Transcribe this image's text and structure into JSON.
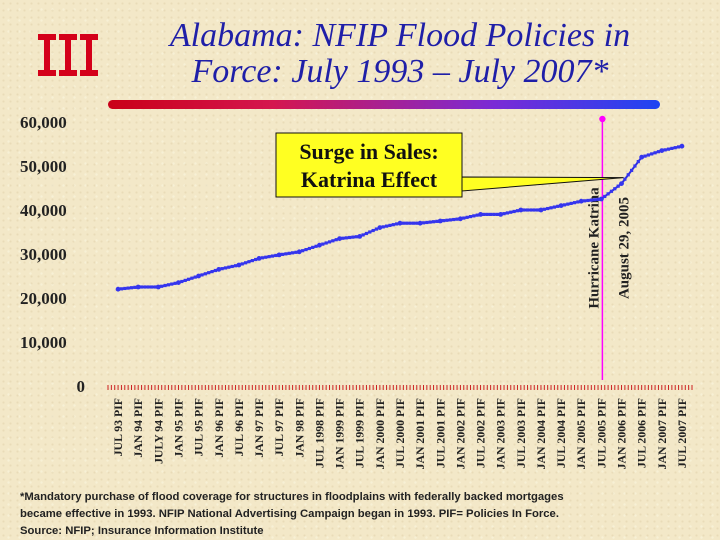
{
  "header": {
    "title_line1": "Alabama: NFIP Flood Policies in",
    "title_line2": "Force: July 1993 – July 2007*"
  },
  "colors": {
    "title": "#1f1fa8",
    "series": "#2a2ae0",
    "marker": "#3535ee",
    "event_line": "#ff00ff",
    "callout_fill": "#ffff22",
    "logo": "#d4001a"
  },
  "logo": {
    "icon": "iii-logo-icon"
  },
  "chart_data": {
    "type": "line",
    "title": "Alabama: NFIP Flood Policies in Force: July 1993 – July 2007*",
    "xlabel": "",
    "ylabel": "",
    "ylim": [
      0,
      60000
    ],
    "y_ticks": [
      0,
      10000,
      20000,
      30000,
      40000,
      50000,
      60000
    ],
    "y_tick_labels": [
      "0",
      "10,000",
      "20,000",
      "30,000",
      "40,000",
      "50,000",
      "60,000"
    ],
    "grid": false,
    "legend": "none",
    "categories": [
      "JUL 93 PIF",
      "JAN 94 PIF",
      "JULY 94 PIF",
      "JAN 95 PIF",
      "JUL 95 PIF",
      "JAN 96 PIF",
      "JUL 96 PIF",
      "JAN 97 PIF",
      "JUL 97 PIF",
      "JAN 98 PIF",
      "JUL 1998 PIF",
      "JAN 1999 PIF",
      "JUL 1999 PIF",
      "JAN 2000 PIF",
      "JUL 2000 PIF",
      "JAN 2001 PIF",
      "JUL 2001 PIF",
      "JAN 2002 PIF",
      "JUL 2002 PIF",
      "JAN 2003 PIF",
      "JUL 2003 PIF",
      "JAN 2004 PIF",
      "JUL 2004 PIF",
      "JAN 2005 PIF",
      "JUL 2005 PIF",
      "JAN 2006 PIF",
      "JUL 2006 PIF",
      "JAN 2007 PIF",
      "JUL 2007 PIF"
    ],
    "series": [
      {
        "values": [
          22000,
          22500,
          22500,
          23500,
          25000,
          26500,
          27500,
          29000,
          29800,
          30500,
          32000,
          33500,
          34000,
          36000,
          37000,
          37000,
          37500,
          38000,
          39000,
          39000,
          40000,
          40000,
          41000,
          42000,
          42500,
          46000,
          52000,
          53500,
          54500
        ]
      }
    ],
    "event": {
      "x_between": [
        "JUL 2005 PIF",
        "JAN 2006 PIF"
      ],
      "position": 24.05,
      "label_line1": "Hurricane Katrina",
      "label_line2": "August 29, 2005"
    },
    "annotation": {
      "line1": "Surge in Sales:",
      "line2": "Katrina Effect",
      "points_to": "JAN 2006 PIF"
    }
  },
  "footnote": {
    "line1": "*Mandatory purchase of flood coverage for structures in floodplains with federally backed mortgages",
    "line2": "became effective in 1993. NFIP National Advertising Campaign began in 1993.   PIF= Policies In Force.",
    "line3": "Source: NFIP; Insurance Information Institute"
  }
}
